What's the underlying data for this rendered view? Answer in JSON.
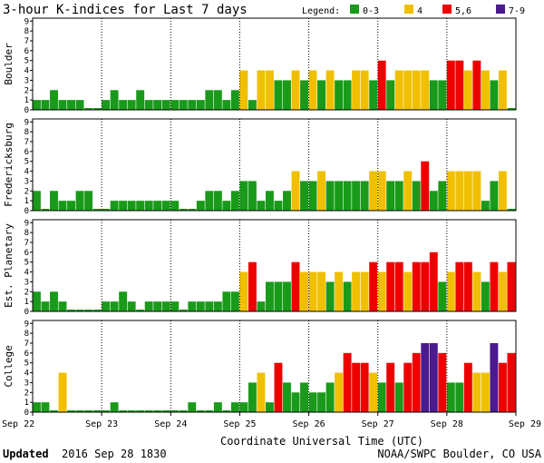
{
  "title": "3-hour K-indices for Last 7 days",
  "legend": {
    "label": "Legend:",
    "items": [
      {
        "label": "0-3",
        "color": "#1a9a1a"
      },
      {
        "label": "4",
        "color": "#f0c000"
      },
      {
        "label": "5,6",
        "color": "#ee0000"
      },
      {
        "label": "7-9",
        "color": "#4a1a8e"
      }
    ]
  },
  "footer": {
    "updated_label": "Updated",
    "updated_value": "2016 Sep 28 1830",
    "source": "NOAA/SWPC Boulder, CO USA"
  },
  "chart_data": {
    "type": "bar",
    "xlabel": "Coordinate Universal Time (UTC)",
    "x_ticks": [
      "Sep 22",
      "Sep 23",
      "Sep 24",
      "Sep 25",
      "Sep 26",
      "Sep 27",
      "Sep 28",
      "Sep 29"
    ],
    "y_ticks": [
      "0",
      "1",
      "2",
      "3",
      "4",
      "5",
      "6",
      "7",
      "8",
      "9"
    ],
    "ylim": [
      0,
      9
    ],
    "intervals_per_day": 8,
    "series": [
      {
        "name": "Boulder",
        "values": [
          1,
          1,
          2,
          1,
          1,
          1,
          0,
          0,
          1,
          2,
          1,
          1,
          2,
          1,
          1,
          1,
          1,
          1,
          1,
          1,
          2,
          2,
          1,
          2,
          4,
          1,
          4,
          4,
          3,
          3,
          4,
          3,
          4,
          3,
          4,
          3,
          3,
          4,
          4,
          3,
          5,
          3,
          4,
          4,
          4,
          4,
          3,
          3,
          5,
          5,
          4,
          5,
          4,
          3,
          4,
          0
        ]
      },
      {
        "name": "Fredericksburg",
        "values": [
          2,
          0,
          2,
          1,
          1,
          2,
          2,
          0,
          0,
          1,
          1,
          1,
          1,
          1,
          1,
          1,
          1,
          0,
          0,
          1,
          2,
          2,
          1,
          2,
          3,
          3,
          1,
          2,
          1,
          2,
          4,
          3,
          3,
          4,
          3,
          3,
          3,
          3,
          3,
          4,
          4,
          3,
          3,
          4,
          3,
          5,
          2,
          3,
          4,
          4,
          4,
          4,
          1,
          3,
          4,
          0
        ]
      },
      {
        "name": "Est. Planetary",
        "values": [
          2,
          1,
          2,
          1,
          0,
          0,
          0,
          0,
          1,
          1,
          2,
          1,
          0,
          1,
          1,
          1,
          1,
          0,
          1,
          1,
          1,
          1,
          2,
          2,
          4,
          5,
          1,
          3,
          3,
          3,
          5,
          4,
          4,
          4,
          3,
          4,
          3,
          4,
          4,
          5,
          4,
          5,
          5,
          4,
          5,
          5,
          6,
          3,
          4,
          5,
          5,
          4,
          3,
          5,
          4,
          5
        ]
      },
      {
        "name": "College",
        "values": [
          1,
          1,
          0,
          4,
          0,
          0,
          0,
          0,
          0,
          1,
          0,
          0,
          0,
          0,
          0,
          0,
          0,
          0,
          1,
          0,
          0,
          1,
          0,
          1,
          1,
          3,
          4,
          1,
          5,
          3,
          2,
          3,
          2,
          2,
          3,
          4,
          6,
          5,
          5,
          4,
          3,
          5,
          3,
          5,
          6,
          7,
          7,
          6,
          3,
          3,
          5,
          4,
          4,
          7,
          5,
          6
        ]
      }
    ]
  }
}
